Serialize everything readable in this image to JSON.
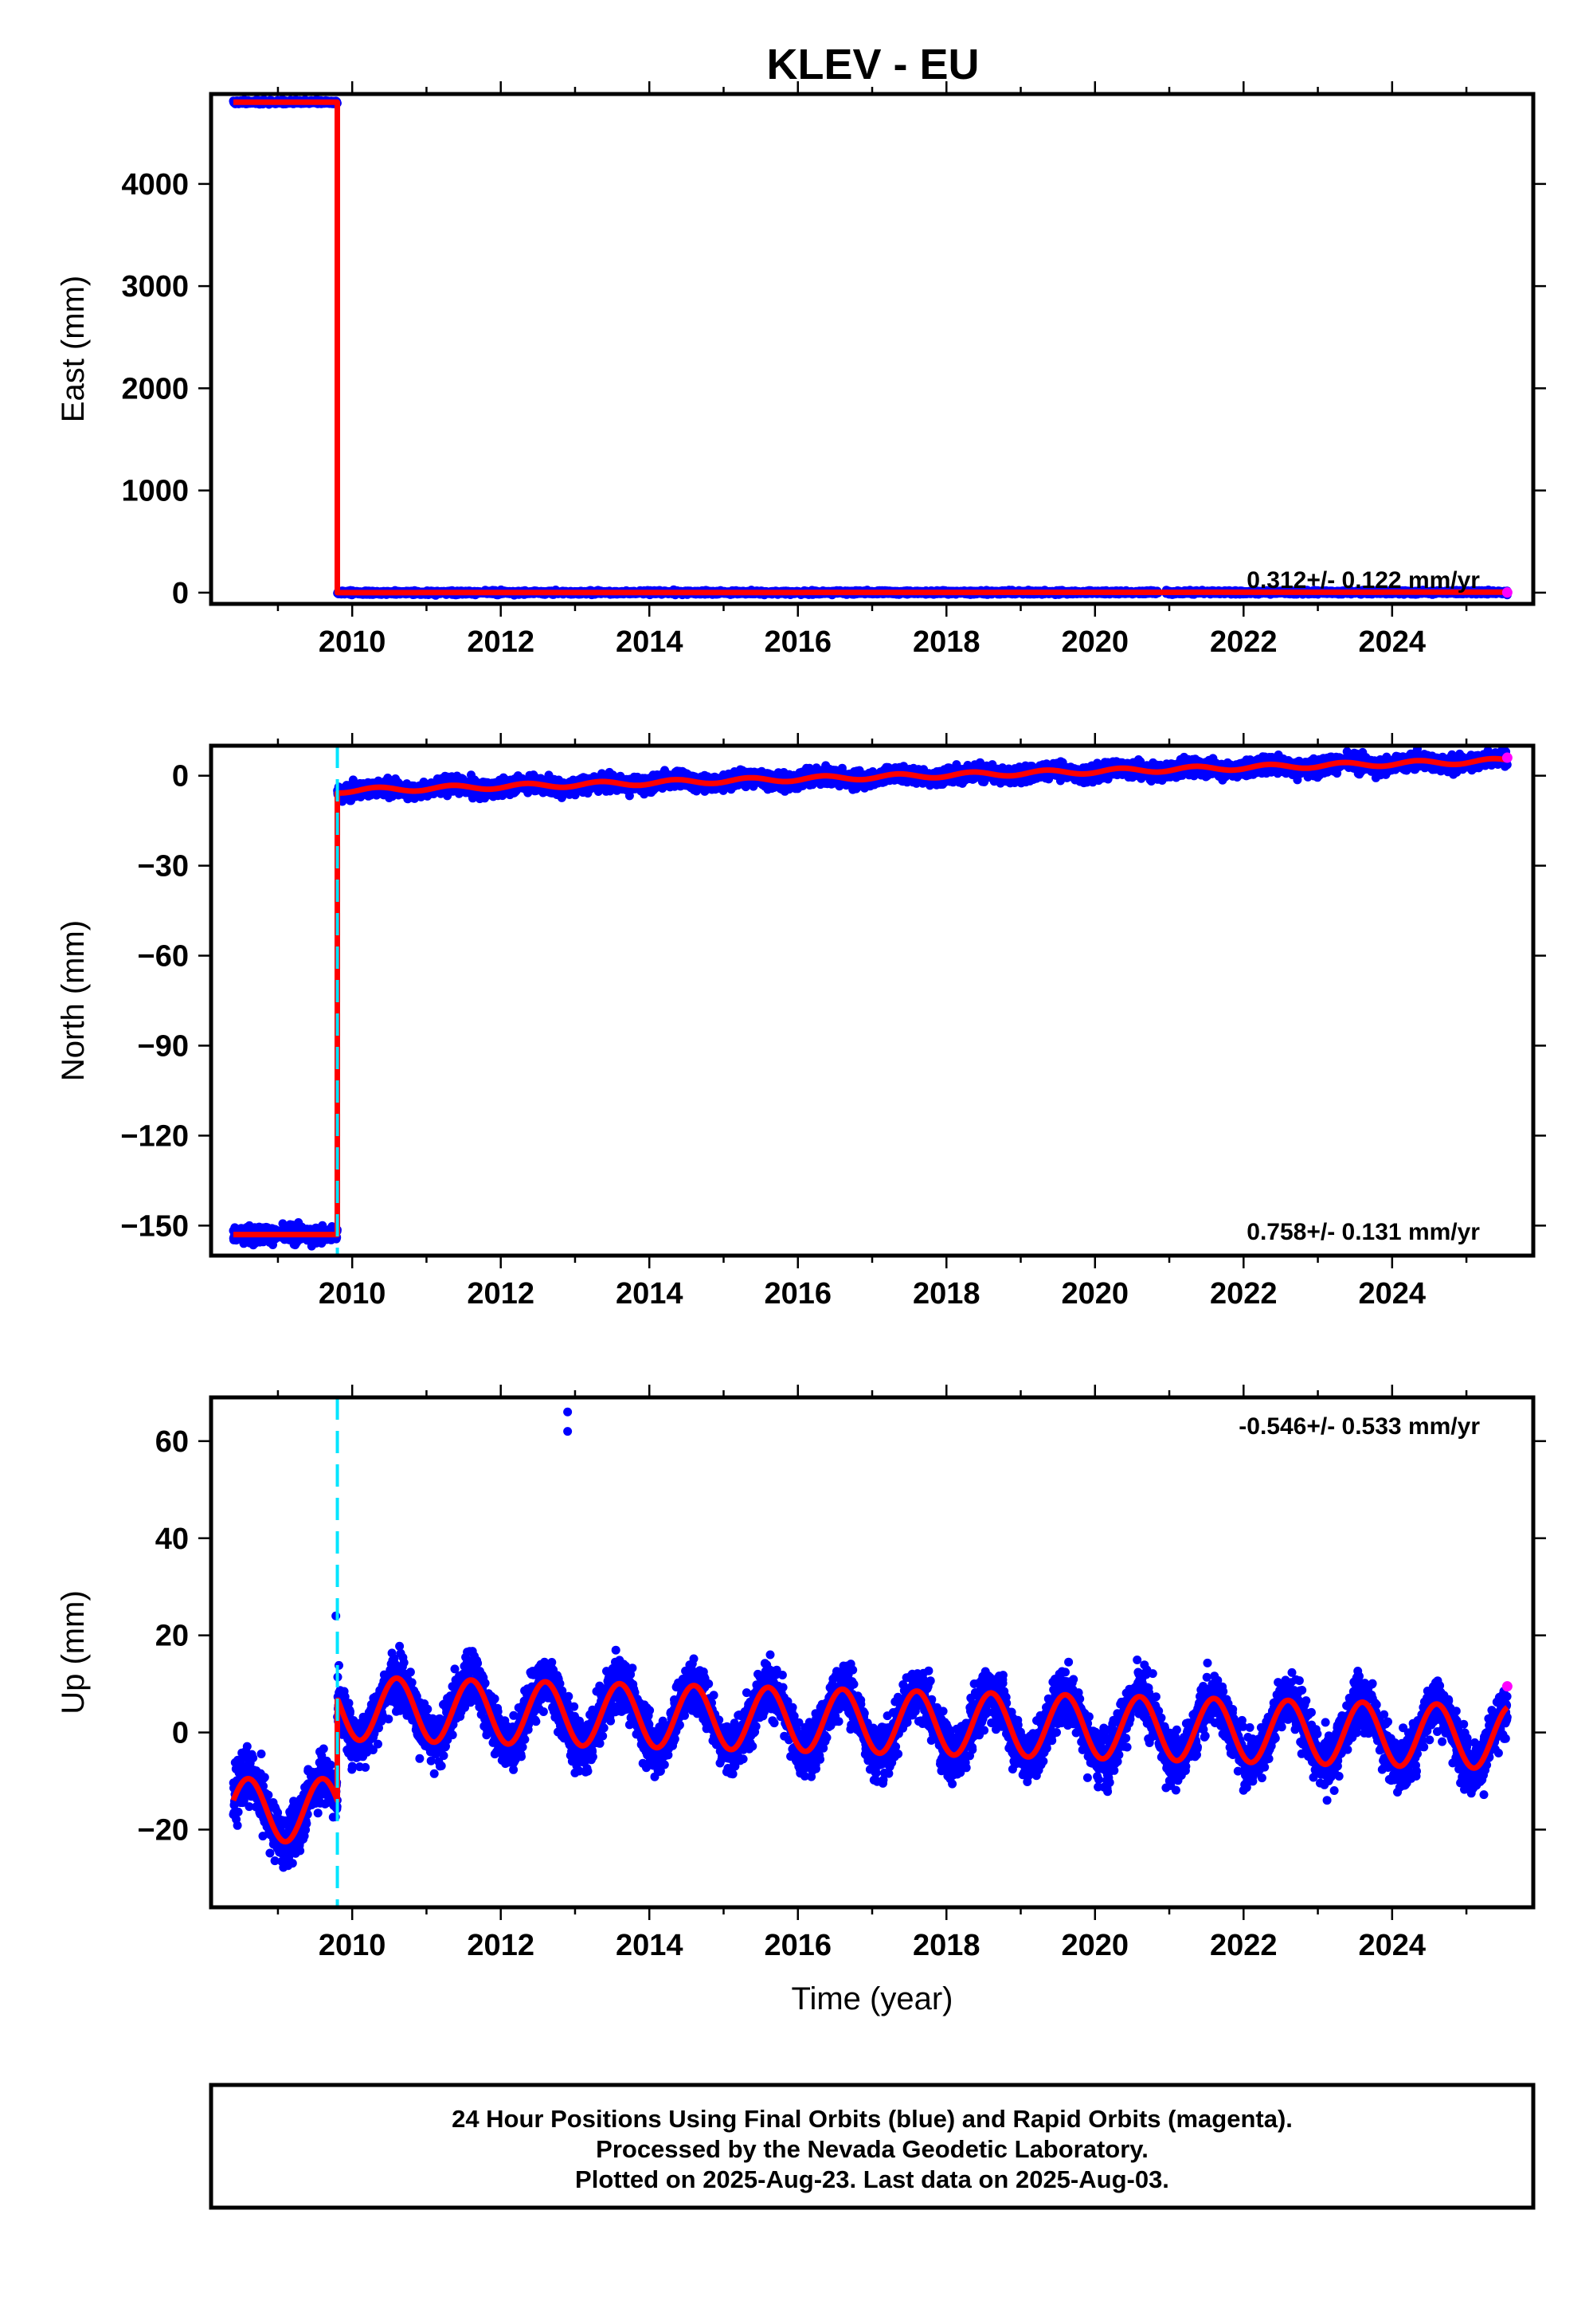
{
  "title": "KLEV - EU",
  "colors": {
    "final_orbits": "#0000ff",
    "rapid_orbits": "#ff00ff",
    "model_fit": "#ff0000",
    "equipment_change": "#00e5ff"
  },
  "footer": {
    "line1": "24 Hour Positions Using Final Orbits (blue) and Rapid Orbits (magenta).",
    "line2": "Processed by the Nevada Geodetic Laboratory.",
    "line3": "Plotted on 2025-Aug-23. Last data on 2025-Aug-03."
  },
  "chart_data": [
    {
      "type": "scatter",
      "id": "east",
      "ylabel": "East (mm)",
      "xlabel": "",
      "xlim": [
        2008.1,
        2025.9
      ],
      "ylim": [
        -110,
        4880
      ],
      "yticks": [
        0,
        1000,
        2000,
        3000,
        4000
      ],
      "xticks": [
        2010,
        2012,
        2014,
        2016,
        2018,
        2020,
        2022,
        2024
      ],
      "rate": "0.312+/- 0.122 mm/yr",
      "rate_position": "bottom-right",
      "grid": false,
      "offset_epoch": 2009.8,
      "dashed_break_visible": false,
      "data_start": 2008.4,
      "data_end": 2025.55,
      "pre_level": 4800,
      "post_level": 0,
      "noise": 12,
      "gap": [
        2020.85,
        2020.95
      ],
      "rapid_point": {
        "x": 2025.55,
        "y": 2
      }
    },
    {
      "type": "scatter",
      "id": "north",
      "ylabel": "North (mm)",
      "xlabel": "",
      "xlim": [
        2008.1,
        2025.9
      ],
      "ylim": [
        -160,
        10
      ],
      "yticks": [
        0,
        -30,
        -60,
        -90,
        -120,
        -150
      ],
      "ytick_labels": [
        "0",
        "−30",
        "−60",
        "−90",
        "−120",
        "−150"
      ],
      "xticks": [
        2010,
        2012,
        2014,
        2016,
        2018,
        2020,
        2022,
        2024
      ],
      "rate": "0.758+/- 0.131 mm/yr",
      "rate_position": "bottom-right",
      "grid": false,
      "offset_epoch": 2009.8,
      "dashed_break_visible": true,
      "data_start": 2008.4,
      "data_end": 2025.55,
      "pre_level": -153,
      "post_start": -5,
      "post_end": 5,
      "noise": 1.8,
      "rapid_point": {
        "x": 2025.55,
        "y": 6
      }
    },
    {
      "type": "scatter",
      "id": "up",
      "ylabel": "Up (mm)",
      "xlabel": "Time (year)",
      "xlim": [
        2008.1,
        2025.9
      ],
      "ylim": [
        -36,
        69
      ],
      "yticks": [
        -20,
        0,
        20,
        40,
        60
      ],
      "ytick_labels": [
        "−20",
        "0",
        "20",
        "40",
        "60"
      ],
      "xticks": [
        2010,
        2012,
        2014,
        2016,
        2018,
        2020,
        2022,
        2024
      ],
      "rate": "-0.546+/- 0.533 mm/yr",
      "rate_position": "top-right",
      "grid": false,
      "offset_epoch": 2009.8,
      "dashed_break_visible": true,
      "data_start": 2008.4,
      "data_end": 2025.55,
      "pre_mean": -16,
      "post_mean_start": 5,
      "post_mean_end": -1,
      "annual_amplitude": 6.5,
      "noise": 3.8,
      "outliers": [
        {
          "x": 2012.9,
          "y": 66
        },
        {
          "x": 2012.9,
          "y": 62
        },
        {
          "x": 2009.78,
          "y": 24
        }
      ],
      "rapid_point": {
        "x": 2025.55,
        "y": 9.5
      }
    }
  ]
}
